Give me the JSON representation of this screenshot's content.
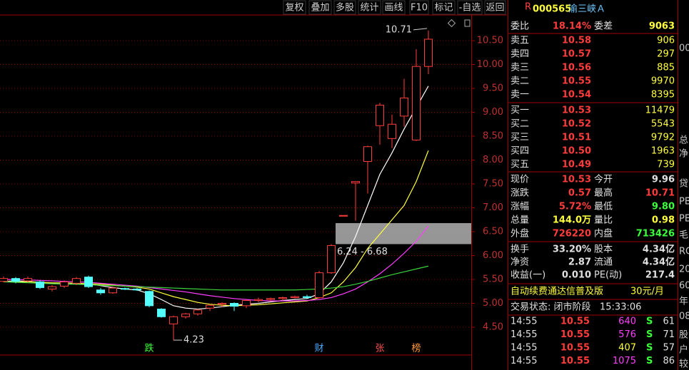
{
  "toolbar": [
    "复权",
    "叠加",
    "多股",
    "统计",
    "画线",
    "F10",
    "标记",
    "-自选",
    "返回"
  ],
  "chart_data": {
    "type": "candlestick",
    "up_color": "#ff3c3c",
    "down_color": "#54ffff",
    "grid": true,
    "yticks": [
      {
        "value": 10.5,
        "label": "10.50"
      },
      {
        "value": 10,
        "label": "10.00"
      },
      {
        "value": 9.5,
        "label": "9.50"
      },
      {
        "value": 9,
        "label": "9.00"
      },
      {
        "value": 8.5,
        "label": "8.50"
      },
      {
        "value": 8,
        "label": "8.00"
      },
      {
        "value": 7.5,
        "label": "7.50"
      },
      {
        "value": 7,
        "label": "7.00"
      },
      {
        "value": 6.5,
        "label": "6.50"
      },
      {
        "value": 6,
        "label": "6.00"
      },
      {
        "value": 5.5,
        "label": "5.50"
      },
      {
        "value": 5,
        "label": "5.00"
      },
      {
        "value": 4.5,
        "label": "4.50"
      }
    ],
    "candles": [
      {
        "open": 5.46,
        "high": 5.56,
        "low": 5.44,
        "close": 5.52
      },
      {
        "open": 5.52,
        "high": 5.55,
        "low": 5.42,
        "close": 5.46
      },
      {
        "open": 5.47,
        "high": 5.56,
        "low": 5.44,
        "close": 5.52
      },
      {
        "open": 5.45,
        "high": 5.48,
        "low": 5.3,
        "close": 5.33
      },
      {
        "open": 5.3,
        "high": 5.38,
        "low": 5.25,
        "close": 5.35
      },
      {
        "open": 5.36,
        "high": 5.48,
        "low": 5.32,
        "close": 5.45
      },
      {
        "open": 5.42,
        "high": 5.55,
        "low": 5.38,
        "close": 5.52
      },
      {
        "open": 5.55,
        "high": 5.58,
        "low": 5.32,
        "close": 5.35
      },
      {
        "open": 5.28,
        "high": 5.32,
        "low": 5.18,
        "close": 5.22
      },
      {
        "open": 5.22,
        "high": 5.35,
        "low": 5.2,
        "close": 5.32
      },
      {
        "open": 5.31,
        "high": 5.33,
        "low": 5.28,
        "close": 5.3
      },
      {
        "open": 5.3,
        "high": 5.32,
        "low": 5.26,
        "close": 5.28
      },
      {
        "open": 5.25,
        "high": 5.27,
        "low": 4.92,
        "close": 4.95,
        "event": "跌",
        "event_color": "#3cff3c"
      },
      {
        "open": 4.88,
        "high": 4.9,
        "low": 4.7,
        "close": 4.72
      },
      {
        "open": 4.57,
        "high": 4.74,
        "low": 4.23,
        "close": 4.72,
        "low_label": "4.23"
      },
      {
        "open": 4.72,
        "high": 4.8,
        "low": 4.68,
        "close": 4.78
      },
      {
        "open": 4.78,
        "high": 4.88,
        "low": 4.74,
        "close": 4.86
      },
      {
        "open": 4.9,
        "high": 4.98,
        "low": 4.84,
        "close": 4.96
      },
      {
        "open": 4.98,
        "high": 5.02,
        "low": 4.92,
        "close": 5.0
      },
      {
        "open": 5.0,
        "high": 5.02,
        "low": 4.84,
        "close": 4.94
      },
      {
        "open": 4.95,
        "high": 5.08,
        "low": 4.9,
        "close": 5.06
      },
      {
        "open": 5.06,
        "high": 5.12,
        "low": 5.02,
        "close": 5.08
      },
      {
        "open": 5.08,
        "high": 5.12,
        "low": 5.04,
        "close": 5.1
      },
      {
        "open": 5.1,
        "high": 5.14,
        "low": 5.06,
        "close": 5.12
      },
      {
        "open": 5.12,
        "high": 5.16,
        "low": 5.1,
        "close": 5.14
      },
      {
        "open": 5.14,
        "high": 5.18,
        "low": 5.1,
        "close": 5.12
      },
      {
        "open": 5.12,
        "high": 5.68,
        "low": 5.1,
        "close": 5.64,
        "event": "财",
        "event_color": "#4aa8ff"
      },
      {
        "open": 5.64,
        "high": 6.24,
        "low": 5.62,
        "close": 6.21
      },
      {
        "open": 6.84,
        "high": 6.84,
        "low": 6.84,
        "close": 6.84
      },
      {
        "open": 7.52,
        "high": 7.55,
        "low": 6.73,
        "close": 7.55
      },
      {
        "open": 7.97,
        "high": 8.3,
        "low": 7.3,
        "close": 8.28
      },
      {
        "open": 8.72,
        "high": 9.2,
        "low": 8.32,
        "close": 9.15,
        "event": "张",
        "event_color": "#ff5050"
      },
      {
        "open": 8.45,
        "high": 8.95,
        "low": 8.25,
        "close": 8.75
      },
      {
        "open": 8.92,
        "high": 9.7,
        "low": 8.7,
        "close": 9.3
      },
      {
        "open": 8.42,
        "high": 10.32,
        "low": 8.4,
        "close": 9.96,
        "event": "榜",
        "event_color": "#ff9a3c"
      },
      {
        "open": 9.96,
        "high": 10.71,
        "low": 9.8,
        "close": 10.53,
        "high_label": "10.71"
      }
    ],
    "ma_series": [
      {
        "color": "#ffffff",
        "values": [
          5.46,
          5.47,
          5.46,
          5.44,
          5.42,
          5.4,
          5.41,
          5.4,
          5.37,
          5.33,
          5.3,
          5.28,
          5.2,
          5.08,
          4.95,
          4.9,
          4.88,
          4.9,
          4.93,
          4.96,
          4.98,
          5.0,
          5.03,
          5.06,
          5.08,
          5.1,
          5.2,
          5.45,
          5.85,
          6.4,
          7.05,
          7.7,
          8.15,
          8.65,
          9.1,
          9.55
        ]
      },
      {
        "color": "#ffff3c",
        "values": [
          5.45,
          5.45,
          5.45,
          5.44,
          5.43,
          5.43,
          5.42,
          5.41,
          5.4,
          5.38,
          5.36,
          5.34,
          5.3,
          5.22,
          5.14,
          5.08,
          5.02,
          4.98,
          4.96,
          4.95,
          4.96,
          4.97,
          4.99,
          5.01,
          5.03,
          5.05,
          5.12,
          5.22,
          5.45,
          5.75,
          6.15,
          6.45,
          6.75,
          7.05,
          7.55,
          8.2
        ]
      },
      {
        "color": "#ff3cff",
        "values": [
          5.5,
          5.5,
          5.49,
          5.48,
          5.47,
          5.46,
          5.45,
          5.44,
          5.42,
          5.4,
          5.38,
          5.36,
          5.33,
          5.3,
          5.27,
          5.24,
          5.2,
          5.16,
          5.13,
          5.1,
          5.08,
          5.06,
          5.05,
          5.05,
          5.05,
          5.06,
          5.08,
          5.12,
          5.2,
          5.3,
          5.45,
          5.62,
          5.82,
          6.05,
          6.3,
          6.62
        ]
      },
      {
        "color": "#3cd23c",
        "values": [
          5.45,
          5.44,
          5.43,
          5.42,
          5.41,
          5.4,
          5.4,
          5.39,
          5.38,
          5.37,
          5.36,
          5.35,
          5.34,
          5.33,
          5.32,
          5.31,
          5.3,
          5.29,
          5.28,
          5.28,
          5.28,
          5.28,
          5.28,
          5.28,
          5.28,
          5.29,
          5.3,
          5.32,
          5.35,
          5.4,
          5.46,
          5.53,
          5.6,
          5.66,
          5.72,
          5.78
        ]
      }
    ],
    "zone": {
      "low": 6.24,
      "high": 6.68,
      "label": "6.24 - 6.68"
    }
  },
  "quote": {
    "flag": "R",
    "code": "000565",
    "name": "渝三峡Ａ",
    "weibi": [
      "委比",
      "18.14%",
      "委差",
      "9063"
    ],
    "asks": [
      [
        "卖五",
        "10.58",
        "906"
      ],
      [
        "卖四",
        "10.57",
        "297"
      ],
      [
        "卖三",
        "10.56",
        "885"
      ],
      [
        "卖二",
        "10.55",
        "9970"
      ],
      [
        "卖一",
        "10.54",
        "8395"
      ]
    ],
    "bids": [
      [
        "买一",
        "10.53",
        "11479"
      ],
      [
        "买二",
        "10.52",
        "5543"
      ],
      [
        "买三",
        "10.51",
        "9792"
      ],
      [
        "买四",
        "10.50",
        "1963"
      ],
      [
        "买五",
        "10.49",
        "739"
      ]
    ],
    "stats": [
      [
        "现价",
        "10.53",
        "今开",
        "9.96"
      ],
      [
        "涨跌",
        "0.57",
        "最高",
        "10.71"
      ],
      [
        "涨幅",
        "5.72%",
        "最低",
        "9.80"
      ],
      [
        "总量",
        "144.0万",
        "量比",
        "0.98"
      ],
      [
        "外盘",
        "726220",
        "内盘",
        "713426"
      ]
    ],
    "stats2": [
      [
        "换手",
        "33.20%",
        "股本",
        "4.34亿"
      ],
      [
        "净资",
        "2.87",
        "流通",
        "4.34亿"
      ],
      [
        "收益(一)",
        "0.010",
        "PE(动)",
        "217.4"
      ]
    ],
    "banner": [
      "自动续费通达信普及版",
      "30元/月"
    ],
    "status": [
      "交易状态: 闭市阶段",
      "15:33:06"
    ],
    "trades": [
      [
        "14:55",
        "10.55",
        "640",
        "S",
        "61"
      ],
      [
        "14:55",
        "10.55",
        "576",
        "S",
        "71"
      ],
      [
        "14:55",
        "10.55",
        "407",
        "S",
        "57"
      ],
      [
        "14:55",
        "10.55",
        "1075",
        "S",
        "86"
      ]
    ]
  },
  "side": [
    "00",
    "总",
    "净",
    "贷",
    "PB",
    "PE",
    "毛",
    "RO",
    "20",
    "60",
    "年",
    "08",
    "股",
    "户",
    "较"
  ]
}
